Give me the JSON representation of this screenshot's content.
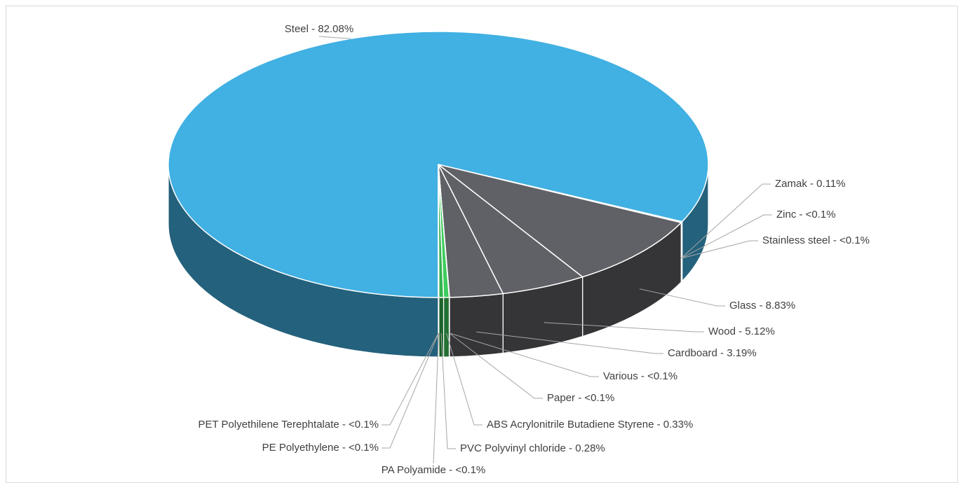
{
  "chart_data": {
    "type": "pie3d",
    "categories": [
      "Steel - 82.08%",
      "Zamak - 0.11%",
      "Zinc - <0.1%",
      "Stainless steel - <0.1%",
      "Glass - 8.83%",
      "Wood - 5.12%",
      "Cardboard - 3.19%",
      "Various - <0.1%",
      "Paper - <0.1%",
      "ABS Acrylonitrile Butadiene Styrene - 0.33%",
      "PVC Polyvinyl chloride - 0.28%",
      "PA Polyamide - <0.1%",
      "PE Polyethylene - <0.1%",
      "PET Polyethilene Terephtalate - <0.1%"
    ],
    "values": [
      82.08,
      0.11,
      0.01,
      0.01,
      8.83,
      5.12,
      3.19,
      0.01,
      0.01,
      0.33,
      0.28,
      0.01,
      0.01,
      0.01
    ],
    "colors": [
      "#41b0e2",
      "#1d4f6b",
      "#24506a",
      "#2a4860",
      "#606166",
      "#606166",
      "#606166",
      "#56575c",
      "#56575c",
      "#3dcc5c",
      "#33b34f",
      "#238a3c",
      "#238a3c",
      "#238a3c"
    ]
  }
}
